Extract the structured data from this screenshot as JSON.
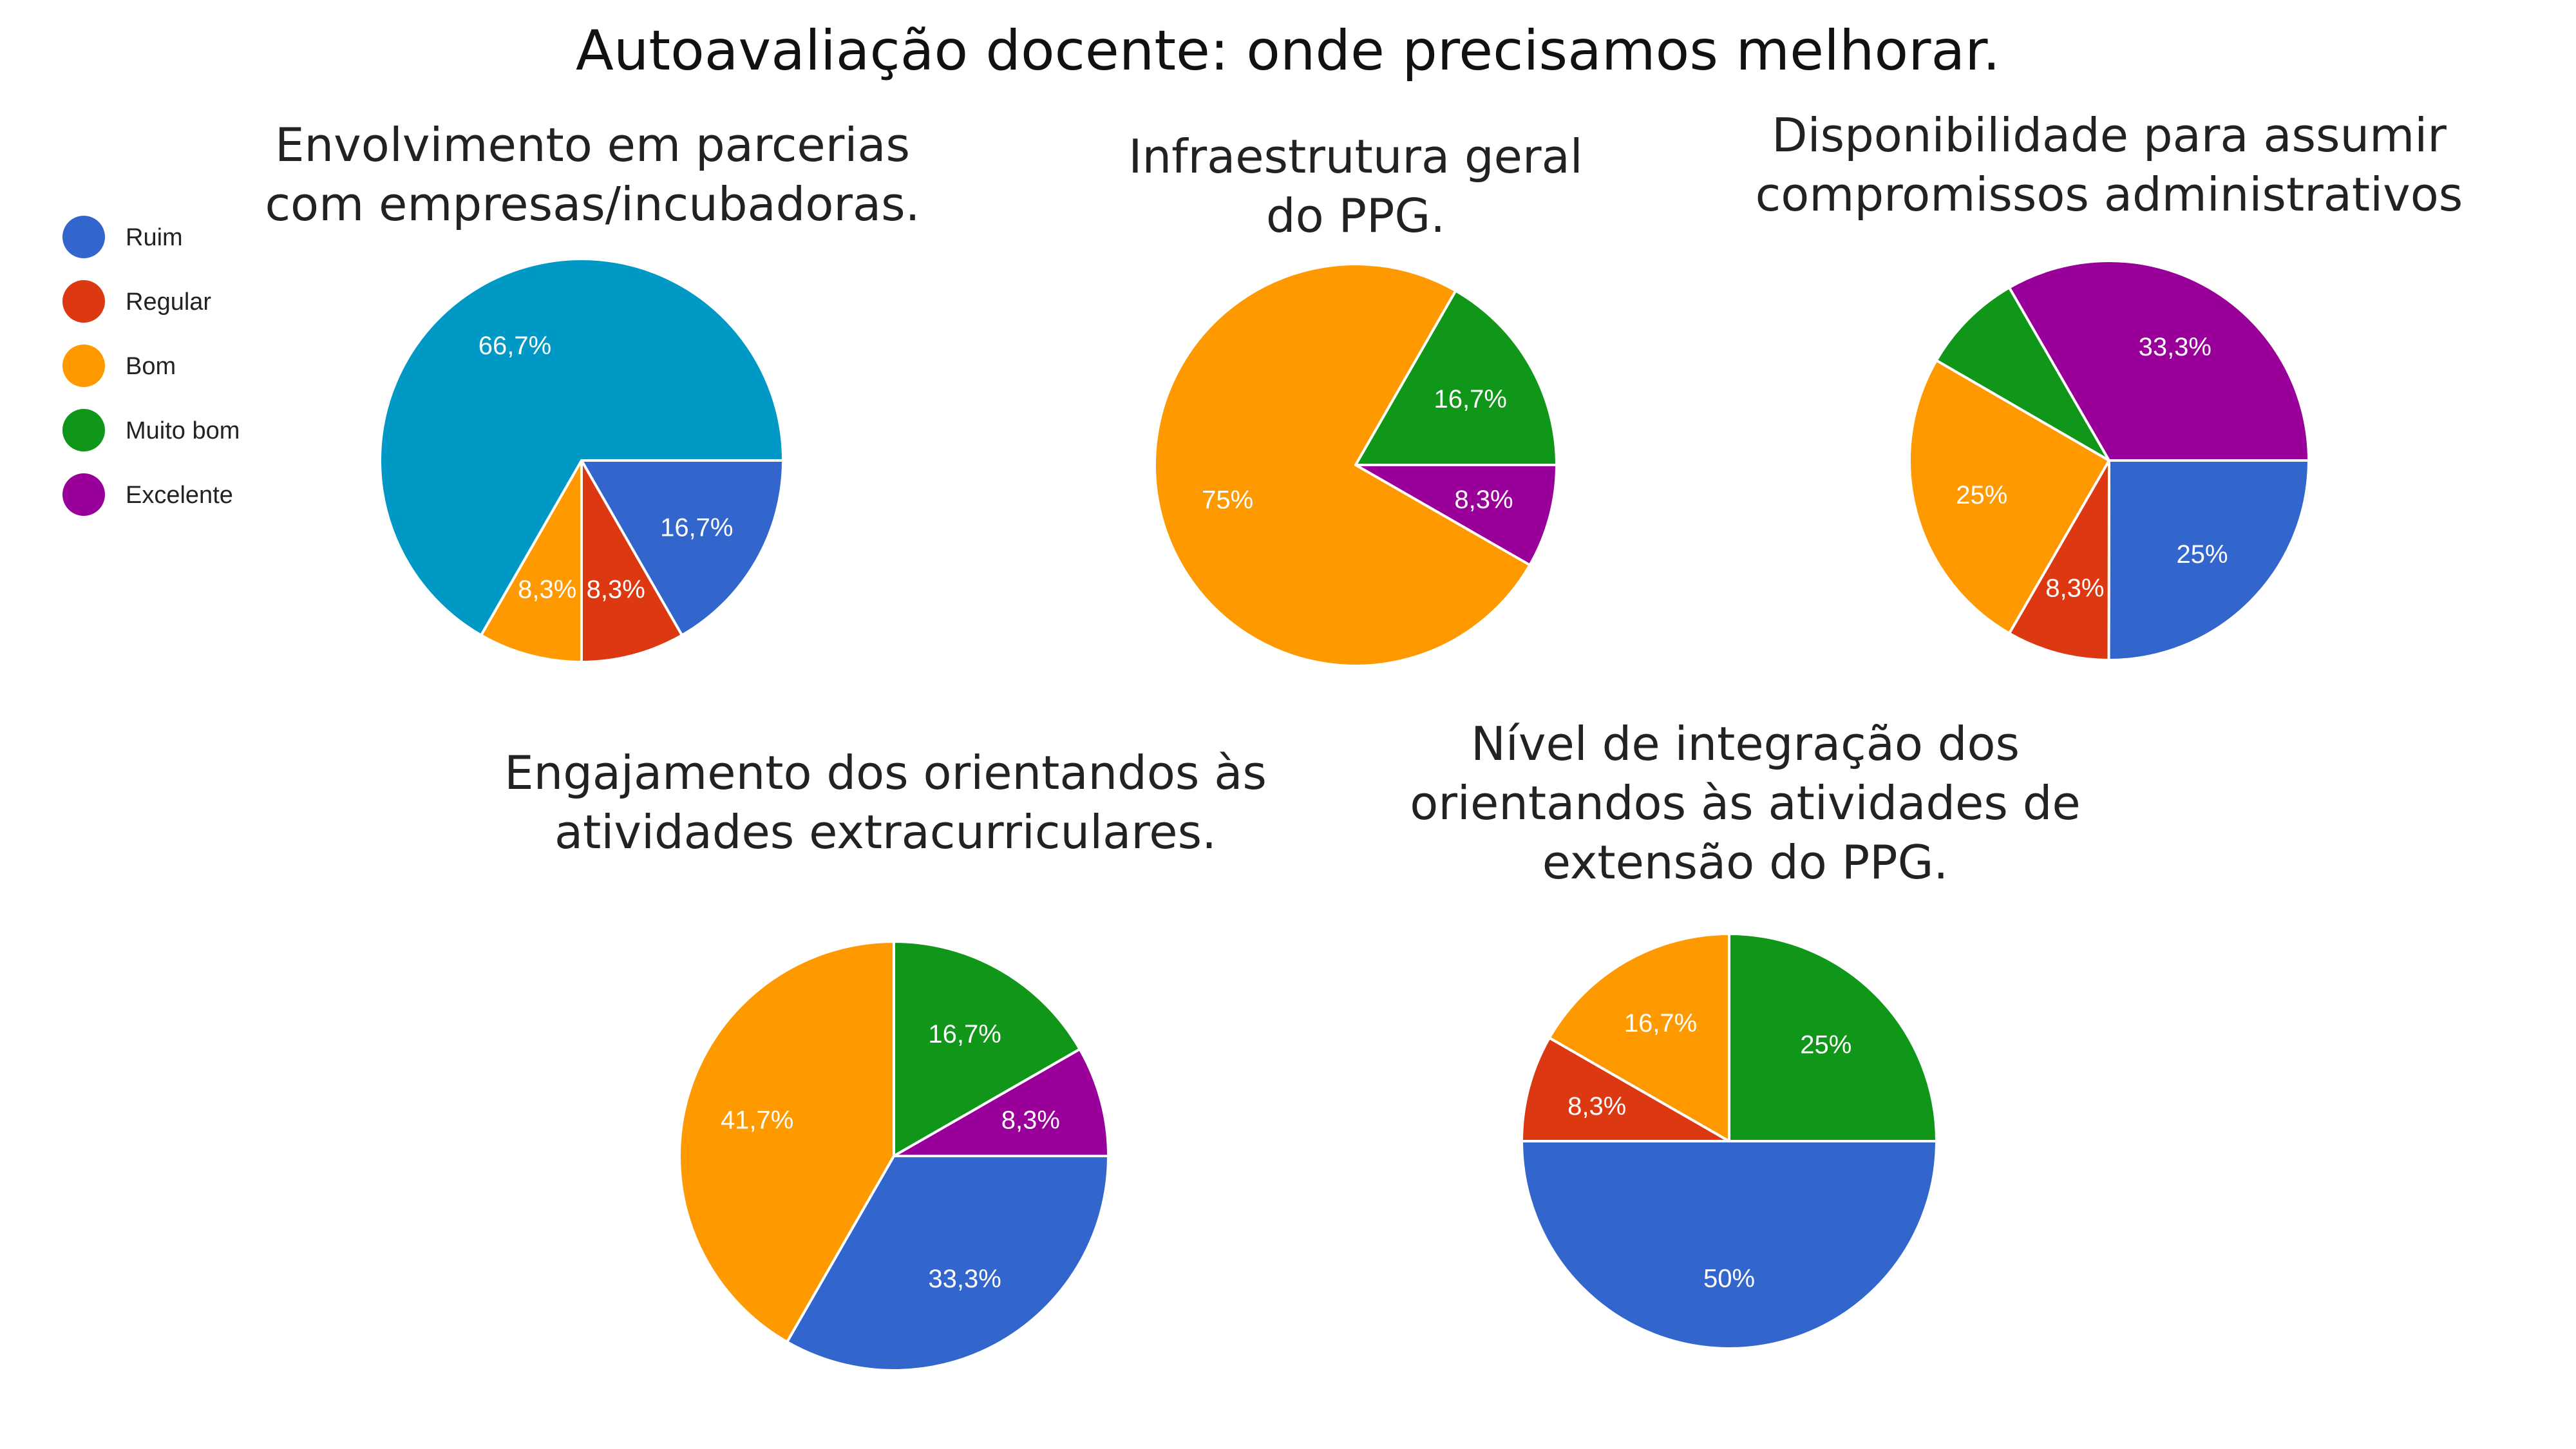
{
  "title": "Autoavaliação docente: onde precisamos melhorar.",
  "legend": [
    {
      "label": "Ruim",
      "color": "#3366cc"
    },
    {
      "label": "Regular",
      "color": "#dc3912"
    },
    {
      "label": "Bom",
      "color": "#ff9900"
    },
    {
      "label": "Muito bom",
      "color": "#109618"
    },
    {
      "label": "Excelente",
      "color": "#990099"
    }
  ],
  "chart_data": [
    {
      "type": "pie",
      "title": [
        "Envolvimento em parcerias",
        "com empresas/incubadoras."
      ],
      "slices": [
        {
          "label": "16,7%",
          "value": 16.7,
          "color": "#3366cc"
        },
        {
          "label": "8,3%",
          "value": 8.3,
          "color": "#dc3912"
        },
        {
          "label": "8,3%",
          "value": 8.3,
          "color": "#ff9900"
        },
        {
          "label": "66,7%",
          "value": 66.7,
          "color": "#0099c6"
        }
      ]
    },
    {
      "type": "pie",
      "title": [
        "Infraestrutura geral",
        "do PPG."
      ],
      "slices": [
        {
          "label": "8,3%",
          "value": 8.3,
          "color": "#990099"
        },
        {
          "label": "75%",
          "value": 75,
          "color": "#ff9900"
        },
        {
          "label": "16,7%",
          "value": 16.7,
          "color": "#109618"
        }
      ]
    },
    {
      "type": "pie",
      "title": [
        "Disponibilidade para assumir",
        "compromissos administrativos"
      ],
      "slices": [
        {
          "label": "25%",
          "value": 25,
          "color": "#3366cc"
        },
        {
          "label": "8,3%",
          "value": 8.3,
          "color": "#dc3912"
        },
        {
          "label": "25%",
          "value": 25,
          "color": "#ff9900"
        },
        {
          "label": "",
          "value": 8.3,
          "color": "#109618"
        },
        {
          "label": "33,3%",
          "value": 33.3,
          "color": "#990099"
        }
      ]
    },
    {
      "type": "pie",
      "title": [
        "Engajamento dos orientandos às",
        "atividades extracurriculares."
      ],
      "slices": [
        {
          "label": "33,3%",
          "value": 33.3,
          "color": "#3366cc"
        },
        {
          "label": "41,7%",
          "value": 41.7,
          "color": "#ff9900"
        },
        {
          "label": "16,7%",
          "value": 16.7,
          "color": "#109618"
        },
        {
          "label": "8,3%",
          "value": 8.3,
          "color": "#990099"
        }
      ]
    },
    {
      "type": "pie",
      "title": [
        "Nível de integração dos",
        "orientandos às atividades de",
        "extensão do PPG."
      ],
      "slices": [
        {
          "label": "50%",
          "value": 50,
          "color": "#3366cc"
        },
        {
          "label": "8,3%",
          "value": 8.3,
          "color": "#dc3912"
        },
        {
          "label": "16,7%",
          "value": 16.7,
          "color": "#ff9900"
        },
        {
          "label": "25%",
          "value": 25,
          "color": "#109618"
        }
      ]
    }
  ]
}
